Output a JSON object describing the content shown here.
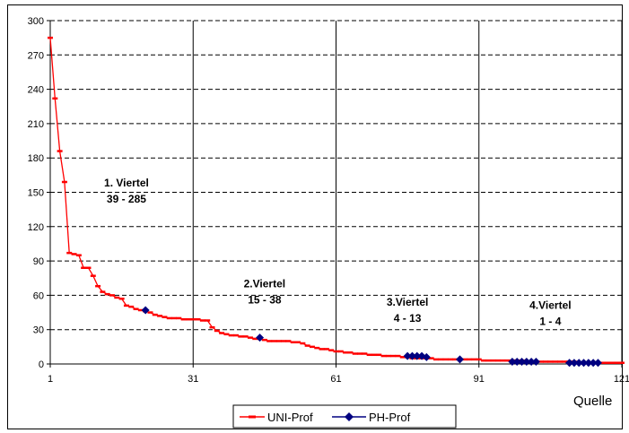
{
  "chart_data": {
    "type": "line",
    "title": "",
    "xlabel": "",
    "ylabel": "",
    "xlim": [
      1,
      121
    ],
    "ylim": [
      0,
      300
    ],
    "x_ticks": [
      1,
      31,
      61,
      91,
      121
    ],
    "y_ticks": [
      0,
      30,
      60,
      90,
      120,
      150,
      180,
      210,
      240,
      270,
      300
    ],
    "grid": {
      "horizontal": "dashed",
      "vertical": "solid"
    },
    "legend_position": "bottom",
    "source_label": "Quelle",
    "series": [
      {
        "name": "UNI-Prof",
        "color": "#ff0000",
        "marker": "dash",
        "x": [
          1,
          2,
          3,
          4,
          5,
          6,
          7,
          8,
          9,
          10,
          11,
          12,
          13,
          14,
          15,
          16,
          17,
          18,
          19,
          20,
          21,
          22,
          23,
          24,
          25,
          26,
          27,
          28,
          29,
          30,
          31,
          32,
          33,
          34,
          35,
          36,
          37,
          38,
          39,
          40,
          41,
          42,
          43,
          44,
          45,
          46,
          47,
          48,
          49,
          50,
          51,
          52,
          53,
          54,
          55,
          56,
          57,
          58,
          59,
          60,
          61,
          62,
          63,
          64,
          65,
          66,
          67,
          68,
          69,
          70,
          71,
          72,
          73,
          74,
          75,
          76,
          77,
          78,
          79,
          80,
          81,
          82,
          83,
          84,
          85,
          86,
          87,
          88,
          89,
          90,
          91,
          92,
          93,
          94,
          95,
          96,
          97,
          98,
          99,
          100,
          101,
          102,
          103,
          104,
          105,
          106,
          107,
          108,
          109,
          110,
          111,
          112,
          113,
          114,
          115,
          116,
          117,
          118,
          119,
          120,
          121
        ],
        "y": [
          285,
          232,
          186,
          159,
          97,
          96,
          95,
          84,
          84,
          77,
          68,
          63,
          61,
          60,
          58,
          57,
          51,
          50,
          48,
          47,
          46,
          45,
          43,
          42,
          41,
          40,
          40,
          40,
          39,
          39,
          39,
          39,
          38,
          38,
          32,
          29,
          27,
          26,
          25,
          25,
          24,
          24,
          23,
          22,
          22,
          21,
          20,
          20,
          20,
          20,
          20,
          19,
          19,
          18,
          16,
          15,
          14,
          13,
          13,
          12,
          11,
          11,
          10,
          10,
          9,
          9,
          9,
          8,
          8,
          8,
          7,
          7,
          7,
          7,
          6,
          6,
          5,
          5,
          5,
          5,
          5,
          4,
          4,
          4,
          4,
          4,
          4,
          4,
          4,
          4,
          4,
          3,
          3,
          3,
          3,
          3,
          3,
          3,
          3,
          3,
          2,
          2,
          2,
          2,
          2,
          2,
          2,
          2,
          2,
          2,
          2,
          1,
          1,
          1,
          1,
          1,
          1,
          1,
          1,
          1,
          1
        ]
      },
      {
        "name": "PH-Prof",
        "color": "#000080",
        "marker": "diamond",
        "x": [
          21,
          45,
          76,
          77,
          78,
          79,
          80,
          87,
          98,
          99,
          100,
          101,
          102,
          103,
          110,
          111,
          112,
          113,
          114,
          115,
          116
        ],
        "y": [
          47,
          23,
          7,
          7,
          7,
          7,
          6,
          4,
          2,
          2,
          2,
          2,
          2,
          2,
          1,
          1,
          1,
          1,
          1,
          1,
          1
        ]
      }
    ],
    "annotations": [
      {
        "line1": "1. Viertel",
        "line2": "39 - 285",
        "x": 17,
        "y": 155
      },
      {
        "line1": "2.Viertel",
        "line2": "15 - 38",
        "x": 46,
        "y": 67
      },
      {
        "line1": "3.Viertel",
        "line2": "4 - 13",
        "x": 76,
        "y": 51
      },
      {
        "line1": "4.Viertel",
        "line2": "1 - 4",
        "x": 106,
        "y": 48
      }
    ]
  }
}
